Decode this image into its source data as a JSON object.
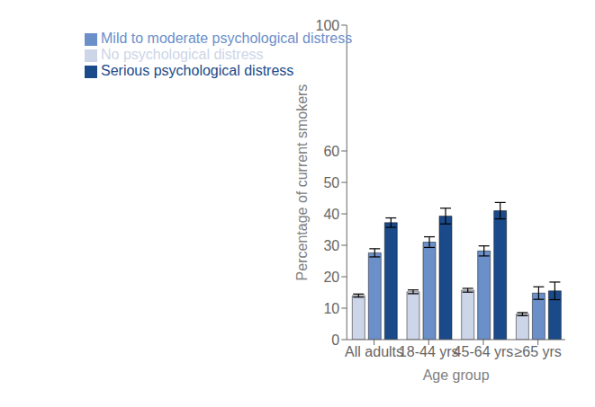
{
  "chart_data": {
    "type": "bar",
    "categories": [
      "All adults",
      "18-44 yrs",
      "45-64 yrs",
      "≥65 yrs"
    ],
    "series": [
      {
        "name": "No psychological distress",
        "color": "#cdd5e8",
        "values": [
          14.0,
          15.2,
          15.7,
          8.1
        ],
        "errors": [
          0.5,
          0.6,
          0.6,
          0.5
        ]
      },
      {
        "name": "Mild to moderate psychological distress",
        "color": "#6b8fc9",
        "values": [
          27.6,
          31.0,
          28.2,
          14.8
        ],
        "errors": [
          1.3,
          1.7,
          1.6,
          2.0
        ]
      },
      {
        "name": "Serious psychological distress",
        "color": "#1a4a8a",
        "values": [
          37.2,
          39.3,
          41.0,
          15.5
        ],
        "errors": [
          1.5,
          2.5,
          2.6,
          2.8
        ]
      }
    ],
    "xlabel": "Age group",
    "ylabel": "Percentage of current smokers",
    "ylim": [
      0,
      100
    ],
    "yticks": [
      0,
      10,
      20,
      30,
      40,
      50,
      60,
      100
    ],
    "legend": "upper left"
  }
}
